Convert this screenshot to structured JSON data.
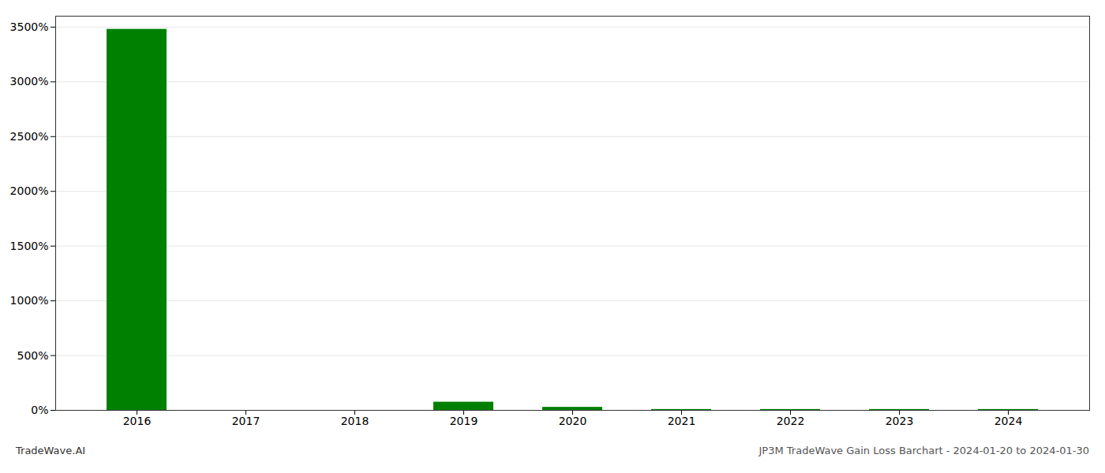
{
  "chart_data": {
    "type": "bar",
    "title": "JP3M TradeWave Gain Loss Barchart - 2024-01-20 to 2024-01-30",
    "annotations": [
      "TradeWave.AI"
    ],
    "categories": [
      "2016",
      "2017",
      "2018",
      "2019",
      "2020",
      "2021",
      "2022",
      "2023",
      "2024"
    ],
    "values": [
      3480,
      0,
      0,
      75,
      28,
      8,
      8,
      8,
      8
    ],
    "color": "#008000",
    "ylim": [
      0,
      3600
    ],
    "yticks": [
      {
        "value": 0,
        "label": "0%"
      },
      {
        "value": 500,
        "label": "500%"
      },
      {
        "value": 1000,
        "label": "1000%"
      },
      {
        "value": 1500,
        "label": "1500%"
      },
      {
        "value": 2000,
        "label": "2000%"
      },
      {
        "value": 2500,
        "label": "2500%"
      },
      {
        "value": 3000,
        "label": "3000%"
      },
      {
        "value": 3500,
        "label": "3500%"
      }
    ],
    "grid": true
  }
}
